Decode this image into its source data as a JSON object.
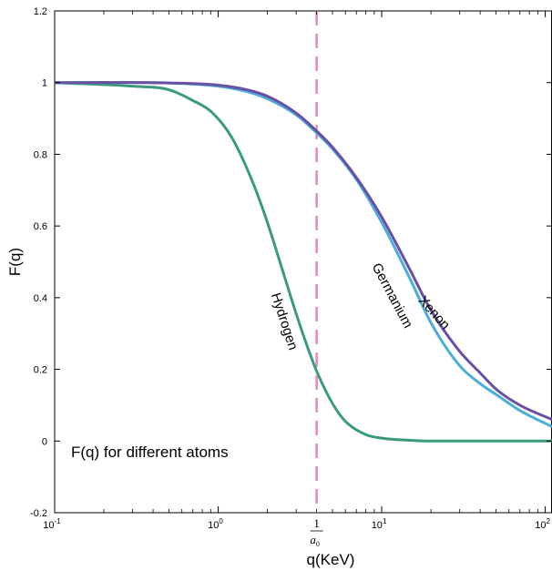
{
  "chart_data": {
    "type": "line",
    "title": "",
    "xlabel": "q(KeV)",
    "ylabel": "F(q)",
    "xscale": "log",
    "xlim": [
      0.1,
      110
    ],
    "ylim": [
      -0.2,
      1.2
    ],
    "grid": false,
    "x_ticks": [
      {
        "value": 0.1,
        "base": "10",
        "exp": "-1"
      },
      {
        "value": 1,
        "base": "10",
        "exp": "0"
      },
      {
        "value": 10,
        "base": "10",
        "exp": "1"
      },
      {
        "value": 100,
        "base": "10",
        "exp": "2"
      }
    ],
    "y_ticks": [
      {
        "value": -0.2,
        "label": "-0.2"
      },
      {
        "value": 0,
        "label": "0"
      },
      {
        "value": 0.2,
        "label": "0.2"
      },
      {
        "value": 0.4,
        "label": "0.4"
      },
      {
        "value": 0.6,
        "label": "0.6"
      },
      {
        "value": 0.8,
        "label": "0.8"
      },
      {
        "value": 1,
        "label": "1"
      },
      {
        "value": 1.2,
        "label": "1.2"
      }
    ],
    "series": [
      {
        "name": "Hydrogen",
        "color": "#3a9b7c",
        "x": [
          0.1,
          0.3,
          0.5,
          0.7,
          0.9,
          1.2,
          1.6,
          2.0,
          2.5,
          3.0,
          3.5,
          4.0,
          5.0,
          6.0,
          8.0,
          10.0,
          15.0,
          20.0,
          30.0,
          50.0,
          110.0
        ],
        "y": [
          1.0,
          0.99,
          0.98,
          0.95,
          0.92,
          0.85,
          0.73,
          0.61,
          0.47,
          0.355,
          0.265,
          0.195,
          0.105,
          0.055,
          0.018,
          0.008,
          0.002,
          0.0,
          0.0,
          0.0,
          0.0
        ]
      },
      {
        "name": "Germanium",
        "color": "#4aaed9",
        "x": [
          0.1,
          0.5,
          1.0,
          1.5,
          2.0,
          3.0,
          4.0,
          5.0,
          7.0,
          10.0,
          15.0,
          20.0,
          30.0,
          40.0,
          50.0,
          70.0,
          110.0
        ],
        "y": [
          1.0,
          0.999,
          0.99,
          0.975,
          0.955,
          0.91,
          0.86,
          0.815,
          0.73,
          0.61,
          0.45,
          0.33,
          0.21,
          0.16,
          0.13,
          0.085,
          0.04
        ]
      },
      {
        "name": "Xenon",
        "color": "#6a4fa3",
        "x": [
          0.1,
          0.5,
          1.0,
          1.5,
          2.0,
          3.0,
          4.0,
          5.0,
          7.0,
          10.0,
          15.0,
          20.0,
          30.0,
          40.0,
          50.0,
          70.0,
          110.0
        ],
        "y": [
          1.0,
          0.999,
          0.993,
          0.98,
          0.962,
          0.915,
          0.865,
          0.82,
          0.735,
          0.625,
          0.475,
          0.365,
          0.25,
          0.19,
          0.145,
          0.1,
          0.06
        ]
      }
    ],
    "curve_labels": [
      {
        "text": "Hydrogen",
        "x": 2.4,
        "y": 0.33,
        "rotate": 72
      },
      {
        "text": "Germanium",
        "x": 11.0,
        "y": 0.4,
        "rotate": 62
      },
      {
        "text": "Xenon",
        "x": 20.0,
        "y": 0.35,
        "rotate": 48
      }
    ],
    "vertical_marker": {
      "x": 4.0,
      "color": "#e08ac0",
      "label_numerator": "1",
      "label_denominator": "a0"
    },
    "annotation": {
      "text": "F(q) for different atoms",
      "x": 0.2,
      "y": 0.005
    }
  }
}
